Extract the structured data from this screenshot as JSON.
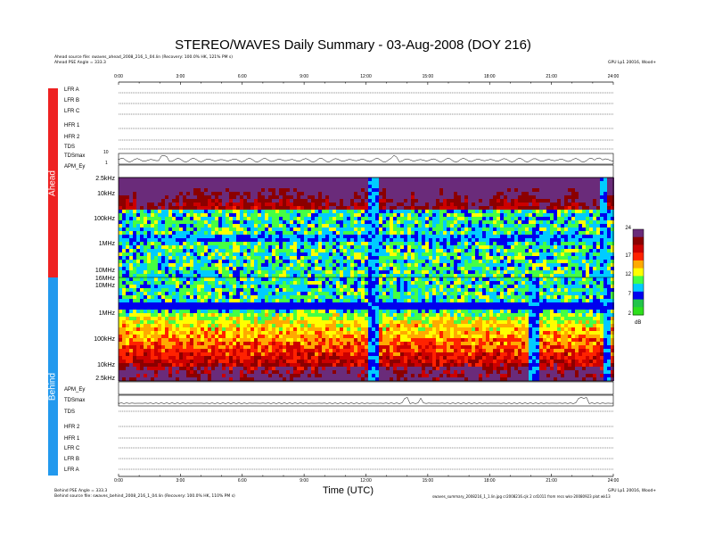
{
  "title": "STEREO/WAVES Daily Summary - 03-Aug-2008 (DOY 216)",
  "ahead_source": "Ahead source file: swaves_ahead_2008_216_1_04.lin (Recovery: 100.0% HK, 121% PM s)",
  "ahead_pse": "Ahead PSE Angle = 333.3",
  "behind_pse": "Behind PSE Angle = 333.3",
  "behind_source": "Behind source file: swaves_behind_2008_216_1_04.lin (Recovery: 100.0% HK, 110% PM s)",
  "generated_top": "GPU Lp1 20016, Wood+",
  "generated_bottom": "GPU Lp1 20016, Wood+",
  "footer_path": "swaves_summary_2008216_1_1.lin.jpg cr2008216.cjk 2 cd1011 from recs wks-20080923 plot wk13",
  "side_labels": {
    "ahead": "Ahead",
    "behind": "Behind"
  },
  "time_label": "Time (UTC)",
  "time_ticks": [
    "0:00",
    "3:00",
    "6:00",
    "9:00",
    "12:00",
    "15:00",
    "18:00",
    "21:00",
    "24:00"
  ],
  "ahead_rows": [
    "LFR A",
    "LFR B",
    "LFR C",
    "HFR 1",
    "HFR 2",
    "TDS",
    "TDSmax",
    "APM_Ey"
  ],
  "behind_rows": [
    "APM_Ey",
    "TDSmax",
    "TDS",
    "HFR 2",
    "HFR 1",
    "LFR C",
    "LFR B",
    "LFR A"
  ],
  "ahead_freq_labels": [
    "2.5kHz",
    "10kHz",
    "100kHz",
    "1MHz",
    "10MHz",
    "16MHz"
  ],
  "behind_freq_labels": [
    "10MHz",
    "1MHz",
    "100kHz",
    "10kHz",
    "2.5kHz"
  ],
  "tdsmax_ticks": [
    "10",
    "1"
  ],
  "colorbar": {
    "ticks": [
      "24",
      "17",
      "12",
      "7",
      "2"
    ],
    "unit": "dB"
  },
  "chart_data": {
    "type": "heatmap",
    "title": "STEREO/WAVES Daily Summary - 03-Aug-2008 (DOY 216)",
    "xlabel": "Time (UTC)",
    "x_range_hours": [
      0,
      24
    ],
    "colorbar_range_db": [
      2,
      24
    ],
    "colorscale": [
      "#2ddf1c",
      "#22c44a",
      "#0000ee",
      "#00ccff",
      "#44ff44",
      "#ffff00",
      "#ffaa00",
      "#ff2200",
      "#cc0000",
      "#8b0000",
      "#6a2b7a"
    ],
    "ahead": {
      "freq_range": [
        "2.5kHz",
        "16MHz"
      ],
      "intense_low_freq_bursts_utc": [
        1.3,
        2.1,
        10.7,
        13.5,
        14.8,
        17.5,
        21.0,
        22.8
      ],
      "dropout_utc": [
        [
          12.0,
          12.6
        ],
        [
          23.3,
          23.6
        ]
      ]
    },
    "behind": {
      "freq_range": [
        "16MHz",
        "2.5kHz"
      ],
      "dropout_utc": [
        [
          12.0,
          12.6
        ],
        [
          19.8,
          20.3
        ],
        [
          23.5,
          23.8
        ]
      ]
    }
  }
}
